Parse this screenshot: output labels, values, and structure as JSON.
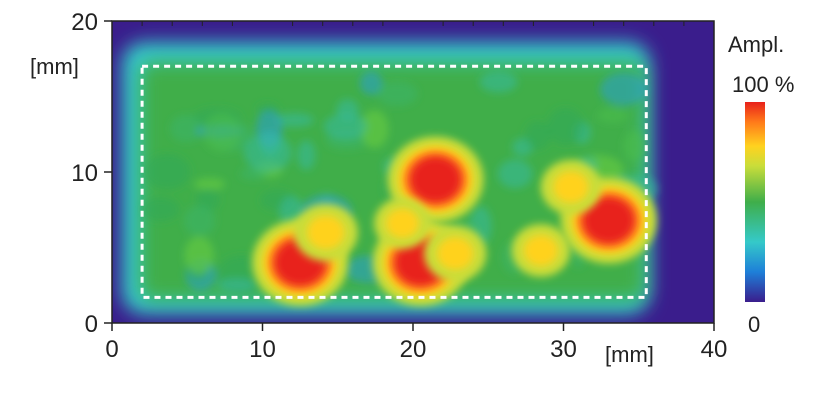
{
  "chart_data": {
    "type": "heatmap",
    "x_unit_label": "[mm]",
    "y_unit_label": "[mm]",
    "xlim": [
      0,
      40
    ],
    "ylim": [
      0,
      20
    ],
    "x_ticks": [
      0,
      10,
      20,
      30,
      40
    ],
    "y_ticks": [
      0,
      10,
      20
    ],
    "x_tick_labels": [
      "0",
      "10",
      "20",
      "30",
      "40"
    ],
    "y_tick_labels": [
      "0",
      "10",
      "20"
    ],
    "colorbar": {
      "title": "Ampl.",
      "max_label": "100 %",
      "min_label": "0",
      "colors": [
        "#3a1d8c",
        "#1e7fd8",
        "#35c9c9",
        "#3fae4a",
        "#c9dd3a",
        "#ffd21f",
        "#ff7a1a",
        "#e8211b"
      ]
    },
    "background_value": "low",
    "region_box_mm": {
      "x": [
        2,
        35.5
      ],
      "y": [
        1.7,
        17
      ]
    },
    "hotspots": [
      {
        "x": 12.5,
        "y": 4.0,
        "amplitude": 100
      },
      {
        "x": 21.5,
        "y": 9.5,
        "amplitude": 100
      },
      {
        "x": 20.5,
        "y": 4.0,
        "amplitude": 100
      },
      {
        "x": 33.0,
        "y": 6.8,
        "amplitude": 100
      },
      {
        "x": 14.2,
        "y": 6.0,
        "amplitude": 80
      },
      {
        "x": 22.8,
        "y": 4.6,
        "amplitude": 75
      },
      {
        "x": 30.5,
        "y": 9.0,
        "amplitude": 70
      },
      {
        "x": 28.5,
        "y": 4.8,
        "amplitude": 65
      },
      {
        "x": 19.3,
        "y": 6.6,
        "amplitude": 60
      }
    ]
  }
}
